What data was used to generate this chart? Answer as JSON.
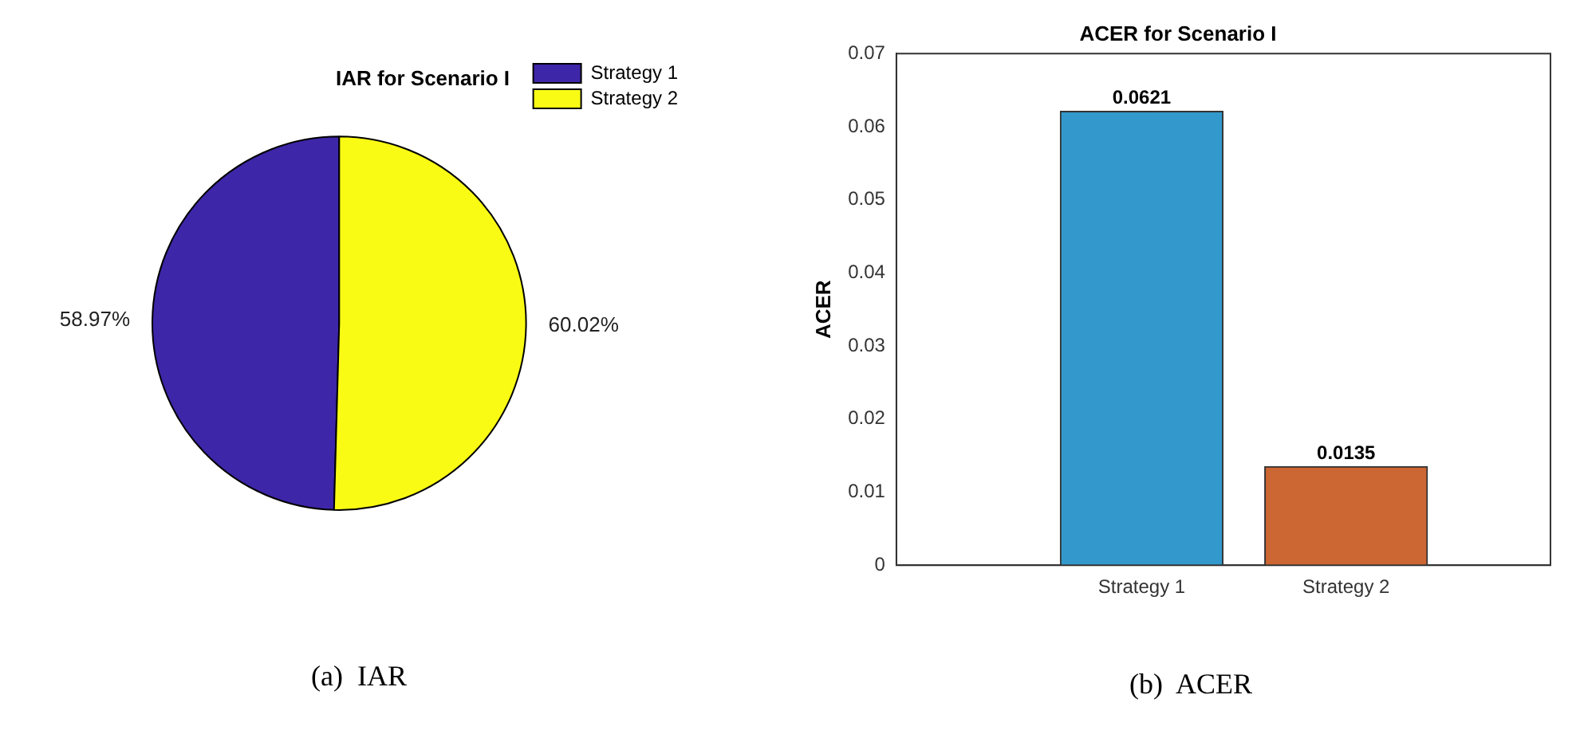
{
  "chart_data": [
    {
      "type": "pie",
      "title": "IAR for Scenario I",
      "categories": [
        "Strategy 1",
        "Strategy 2"
      ],
      "values": [
        58.97,
        60.02
      ],
      "colors": [
        "#3e26a8",
        "#f9fb15"
      ],
      "value_labels": [
        "58.97%",
        "60.02%"
      ],
      "legend": "top right",
      "annotations": [
        "(a)  IAR"
      ]
    },
    {
      "type": "bar",
      "title": "ACER for Scenario I",
      "ylabel": "ACER",
      "categories": [
        "Strategy 1",
        "Strategy 2"
      ],
      "values": [
        0.0621,
        0.0135
      ],
      "colors": [
        "#3399cc",
        "#cc6633"
      ],
      "ylim": [
        0,
        0.07
      ],
      "yticks": [
        0,
        0.01,
        0.02,
        0.03,
        0.04,
        0.05,
        0.06,
        0.07
      ],
      "data_labels": true,
      "grid": false,
      "legend": false,
      "annotations": [
        "(b)  ACER"
      ]
    }
  ]
}
